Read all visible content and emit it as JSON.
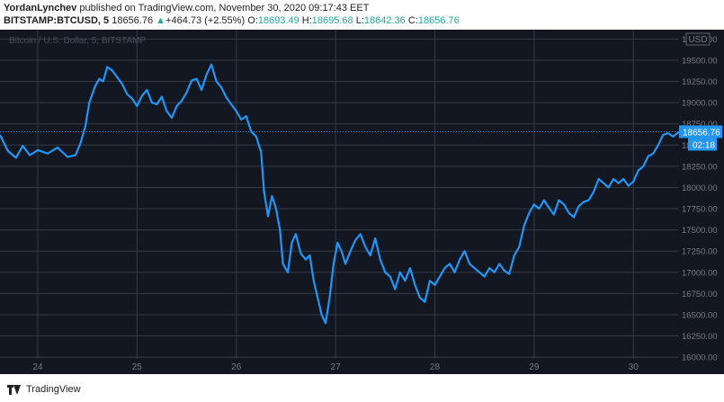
{
  "header": {
    "author": "YordanLynchev",
    "published_text": "published on TradingView.com, November 30, 2020 09:17:43 EET",
    "symbol": "BITSTAMP:BTCUSD, 5",
    "last": "18656.76",
    "change_arrow": "▲",
    "change": "+464.73 (+2.55%)",
    "o_label": "O:",
    "o": "18693.49",
    "h_label": "H:",
    "h": "18695.68",
    "l_label": "L:",
    "l": "18642.36",
    "c_label": "C:",
    "c": "18656.76"
  },
  "footer": {
    "brand": "TradingView",
    "logo_icon": "tradingview-logo-icon"
  },
  "colors": {
    "background": "#131722",
    "line": "#2196f3",
    "grid": "#363a45",
    "last_price": "#2196f3",
    "change_up": "#26a69a"
  },
  "chart_data": {
    "type": "line",
    "watermark": "Bitcoin / U.S. Dollar, 5, BITSTAMP",
    "currency": "USD",
    "x_ticks": [
      "24",
      "25",
      "26",
      "27",
      "28",
      "29",
      "30"
    ],
    "x_range": [
      23.62,
      30.46
    ],
    "y_ticks": [
      16000,
      16250,
      16500,
      16750,
      17000,
      17250,
      17500,
      17750,
      18000,
      18250,
      18500,
      18750,
      19000,
      19250,
      19500,
      19750
    ],
    "y_tick_labels": [
      "16000.00",
      "16250.00",
      "16500.00",
      "16750.00",
      "17000.00",
      "17250.00",
      "17500.00",
      "17750.00",
      "18000.00",
      "18250.00",
      "18500.00",
      "18750.00",
      "19000.00",
      "19250.00",
      "19500.00",
      "19750.00"
    ],
    "ylim": [
      15980,
      19860
    ],
    "last_price_label": "18656.76",
    "countdown_label": "02:18",
    "series": [
      {
        "x": [
          23.62,
          23.7,
          23.78,
          23.85,
          23.92,
          24.0,
          24.1,
          24.2,
          24.3,
          24.38,
          24.43,
          24.48,
          24.52,
          24.58,
          24.62,
          24.66,
          24.7,
          24.75,
          24.8,
          24.85,
          24.9,
          24.95,
          25.0,
          25.05,
          25.1,
          25.15,
          25.2,
          25.25,
          25.3,
          25.35,
          25.4,
          25.45,
          25.5,
          25.55,
          25.6,
          25.65,
          25.7,
          25.75,
          25.8,
          25.85,
          25.9,
          25.95,
          26.0,
          26.05,
          26.1,
          26.15,
          26.2,
          26.25,
          26.28,
          26.32,
          26.36,
          26.4,
          26.44,
          26.47,
          26.52,
          26.56,
          26.6,
          26.65,
          26.7,
          26.74,
          26.78,
          26.82,
          26.86,
          26.9,
          26.94,
          26.98,
          27.02,
          27.06,
          27.1,
          27.15,
          27.2,
          27.25,
          27.3,
          27.35,
          27.4,
          27.45,
          27.5,
          27.55,
          27.6,
          27.65,
          27.7,
          27.75,
          27.8,
          27.85,
          27.9,
          27.95,
          28.0,
          28.05,
          28.1,
          28.15,
          28.2,
          28.25,
          28.3,
          28.35,
          28.4,
          28.45,
          28.5,
          28.55,
          28.6,
          28.65,
          28.7,
          28.75,
          28.8,
          28.85,
          28.9,
          28.95,
          29.0,
          29.05,
          29.1,
          29.15,
          29.2,
          29.25,
          29.3,
          29.35,
          29.4,
          29.45,
          29.5,
          29.55,
          29.6,
          29.65,
          29.7,
          29.75,
          29.8,
          29.85,
          29.9,
          29.95,
          30.0,
          30.05,
          30.1,
          30.15,
          30.2,
          30.25,
          30.3,
          30.35,
          30.4,
          30.46
        ],
        "values": [
          18620,
          18430,
          18350,
          18490,
          18380,
          18440,
          18400,
          18470,
          18360,
          18380,
          18520,
          18720,
          19000,
          19200,
          19280,
          19250,
          19420,
          19380,
          19300,
          19220,
          19100,
          19050,
          18960,
          19080,
          19150,
          19000,
          18980,
          19070,
          18900,
          18820,
          18960,
          19020,
          19120,
          19260,
          19280,
          19150,
          19330,
          19450,
          19250,
          19180,
          19060,
          18980,
          18900,
          18800,
          18840,
          18660,
          18600,
          18420,
          17950,
          17660,
          17900,
          17750,
          17500,
          17100,
          17000,
          17350,
          17450,
          17220,
          17150,
          17200,
          16900,
          16700,
          16500,
          16400,
          16700,
          17100,
          17350,
          17250,
          17100,
          17250,
          17380,
          17450,
          17300,
          17200,
          17400,
          17150,
          17000,
          16950,
          16800,
          17000,
          16900,
          17050,
          16850,
          16700,
          16650,
          16900,
          16850,
          16950,
          17050,
          17100,
          17000,
          17150,
          17250,
          17100,
          17050,
          17000,
          16950,
          17050,
          17000,
          17100,
          17020,
          16980,
          17200,
          17300,
          17550,
          17700,
          17800,
          17750,
          17850,
          17760,
          17680,
          17850,
          17800,
          17700,
          17650,
          17780,
          17830,
          17850,
          17950,
          18100,
          18050,
          18000,
          18100,
          18050,
          18100,
          18020,
          18070,
          18200,
          18250,
          18370,
          18400,
          18500,
          18620,
          18640,
          18600,
          18657
        ]
      }
    ]
  }
}
